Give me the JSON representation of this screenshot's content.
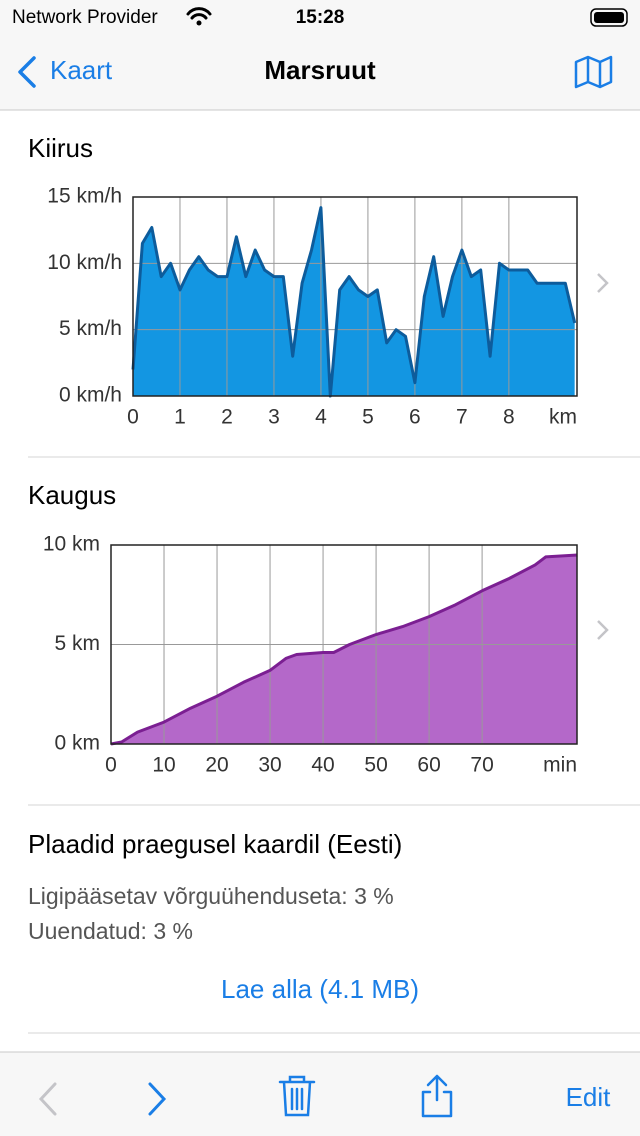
{
  "status_bar": {
    "carrier": "Network Provider",
    "time": "15:28"
  },
  "nav": {
    "back": "Kaart",
    "title": "Marsruut"
  },
  "chart_data": [
    {
      "type": "area",
      "title": "Kiirus",
      "xlabel": "km",
      "xlim": [
        0,
        9.45
      ],
      "xticks": [
        0,
        1,
        2,
        3,
        4,
        5,
        6,
        7,
        8
      ],
      "ylim": [
        0,
        15
      ],
      "yticks": [
        {
          "value": 0,
          "label": "0 km/h"
        },
        {
          "value": 5,
          "label": "5 km/h"
        },
        {
          "value": 10,
          "label": "10 km/h"
        },
        {
          "value": 15,
          "label": "15 km/h"
        }
      ],
      "grid": true,
      "color": "#1396e2",
      "line_color": "#0d5c9c",
      "x": [
        0,
        0.2,
        0.4,
        0.6,
        0.8,
        1.0,
        1.2,
        1.4,
        1.6,
        1.8,
        2.0,
        2.2,
        2.4,
        2.6,
        2.8,
        3.0,
        3.2,
        3.4,
        3.6,
        3.8,
        4.0,
        4.2,
        4.4,
        4.6,
        4.8,
        5.0,
        5.2,
        5.4,
        5.6,
        5.8,
        6.0,
        6.2,
        6.4,
        6.6,
        6.8,
        7.0,
        7.2,
        7.4,
        7.6,
        7.8,
        8.0,
        8.2,
        8.4,
        8.6,
        8.8,
        9.0,
        9.2,
        9.4
      ],
      "values": [
        2,
        11.5,
        12.7,
        9,
        10,
        8,
        9.5,
        10.5,
        9.5,
        9,
        9,
        12,
        9,
        11,
        9.5,
        9,
        9,
        3,
        8.5,
        11,
        14.2,
        0,
        8,
        9,
        8,
        7.5,
        8,
        4,
        5,
        4.5,
        1,
        7.5,
        10.5,
        6,
        9,
        11,
        9,
        9.5,
        3,
        10,
        9.5,
        9.5,
        9.5,
        8.5,
        8.5,
        8.5,
        8.5,
        5.5
      ]
    },
    {
      "type": "area",
      "title": "Kaugus",
      "xlabel": "min",
      "xlim": [
        0,
        87.9
      ],
      "xticks": [
        0,
        10,
        20,
        30,
        40,
        50,
        60,
        70
      ],
      "ylim": [
        0,
        10
      ],
      "yticks": [
        {
          "value": 0,
          "label": "0 km"
        },
        {
          "value": 5,
          "label": "5 km"
        },
        {
          "value": 10,
          "label": "10 km"
        }
      ],
      "grid": true,
      "color": "#b468c9",
      "line_color": "#7b1f92",
      "x": [
        0,
        2,
        5,
        10,
        15,
        20,
        25,
        30,
        33,
        35,
        40,
        42,
        45,
        50,
        55,
        60,
        65,
        70,
        75,
        80,
        82,
        88
      ],
      "values": [
        0,
        0.1,
        0.6,
        1.1,
        1.8,
        2.4,
        3.1,
        3.7,
        4.3,
        4.5,
        4.6,
        4.6,
        5.0,
        5.5,
        5.9,
        6.4,
        7.0,
        7.7,
        8.3,
        9.0,
        9.4,
        9.5
      ]
    }
  ],
  "tiles": {
    "title": "Plaadid praegusel kaardil (Eesti)",
    "offline": "Ligipääsetav võrguühenduseta: 3 %",
    "updated": "Uuendatud: 3 %",
    "download": "Lae alla (4.1 MB)"
  },
  "toolbar": {
    "edit": "Edit"
  }
}
